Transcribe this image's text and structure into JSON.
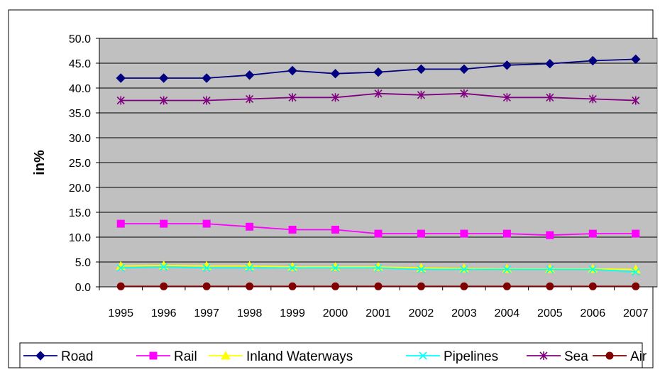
{
  "chart_data": {
    "type": "line",
    "title": "",
    "xlabel": "",
    "ylabel": "in%",
    "ylim": [
      0,
      50
    ],
    "yticks": [
      "0.0",
      "5.0",
      "10.0",
      "15.0",
      "20.0",
      "25.0",
      "30.0",
      "35.0",
      "40.0",
      "45.0",
      "50.0"
    ],
    "grid": true,
    "legend_position": "bottom",
    "plot_background": "#c0c0c0",
    "categories": [
      "1995",
      "1996",
      "1997",
      "1998",
      "1999",
      "2000",
      "2001",
      "2002",
      "2003",
      "2004",
      "2005",
      "2006",
      "2007"
    ],
    "series": [
      {
        "name": "Road",
        "color": "#000080",
        "marker": "diamond",
        "values": [
          42.0,
          42.0,
          42.0,
          42.6,
          43.5,
          42.9,
          43.2,
          43.8,
          43.8,
          44.6,
          44.9,
          45.5,
          45.8
        ]
      },
      {
        "name": "Rail",
        "color": "#ff00ff",
        "marker": "square",
        "values": [
          12.7,
          12.7,
          12.7,
          12.1,
          11.5,
          11.5,
          10.7,
          10.7,
          10.7,
          10.7,
          10.4,
          10.7,
          10.7
        ]
      },
      {
        "name": "Inland Waterways",
        "color": "#ffff00",
        "marker": "triangle",
        "values": [
          4.2,
          4.3,
          4.2,
          4.2,
          4.0,
          4.0,
          4.0,
          3.8,
          3.7,
          3.6,
          3.6,
          3.6,
          3.5
        ]
      },
      {
        "name": "Pipelines",
        "color": "#00ffff",
        "marker": "x",
        "values": [
          3.8,
          4.0,
          3.8,
          3.8,
          3.8,
          3.8,
          3.8,
          3.5,
          3.5,
          3.5,
          3.5,
          3.5,
          3.0
        ]
      },
      {
        "name": "Sea",
        "color": "#800080",
        "marker": "star",
        "values": [
          37.5,
          37.5,
          37.5,
          37.8,
          38.1,
          38.1,
          38.9,
          38.6,
          38.9,
          38.1,
          38.1,
          37.8,
          37.5
        ]
      },
      {
        "name": "Air",
        "color": "#800000",
        "marker": "circle",
        "values": [
          0.1,
          0.1,
          0.1,
          0.1,
          0.1,
          0.1,
          0.1,
          0.1,
          0.1,
          0.1,
          0.1,
          0.1,
          0.1
        ]
      }
    ]
  }
}
